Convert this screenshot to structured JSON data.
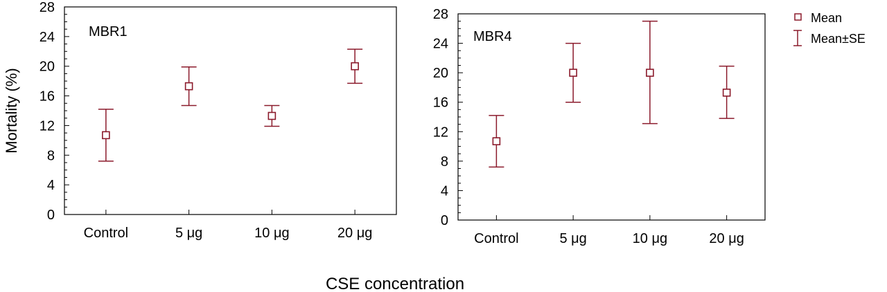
{
  "x_axis_shared_label": "CSE concentration",
  "y_axis_shared_label": "Mortality (%)",
  "colors": {
    "marker": "#8b1a2b",
    "axis": "#000000"
  },
  "legend": {
    "mean_label": "Mean",
    "se_label": "Mean±SE",
    "placement": "right"
  },
  "chart_data": [
    {
      "type": "scatter",
      "title": "MBR1",
      "xlabel": "CSE concentration",
      "ylabel": "Mortality (%)",
      "categories": [
        "Control",
        "5 μg",
        "10 μg",
        "20 μg"
      ],
      "ylim": [
        0,
        28
      ],
      "yticks": [
        0,
        4,
        8,
        12,
        16,
        20,
        24,
        28
      ],
      "series": [
        {
          "name": "Mean",
          "values": [
            10.7,
            17.3,
            13.3,
            20.0
          ]
        },
        {
          "name": "Mean±SE",
          "lower": [
            7.2,
            14.7,
            11.9,
            17.7
          ],
          "upper": [
            14.2,
            19.9,
            14.7,
            22.3
          ]
        }
      ]
    },
    {
      "type": "scatter",
      "title": "MBR4",
      "xlabel": "CSE concentration",
      "ylabel": "Mortality (%)",
      "categories": [
        "Control",
        "5 μg",
        "10 μg",
        "20 μg"
      ],
      "ylim": [
        0,
        28
      ],
      "yticks": [
        0,
        4,
        8,
        12,
        16,
        20,
        24,
        28
      ],
      "series": [
        {
          "name": "Mean",
          "values": [
            10.7,
            20.0,
            20.0,
            17.3
          ]
        },
        {
          "name": "Mean±SE",
          "lower": [
            7.2,
            16.0,
            13.1,
            13.8
          ],
          "upper": [
            14.2,
            24.0,
            27.0,
            20.9
          ]
        }
      ]
    }
  ]
}
